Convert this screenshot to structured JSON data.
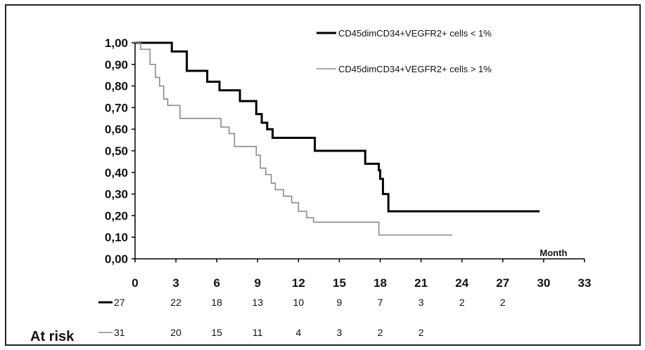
{
  "chart_data": {
    "type": "line",
    "step": true,
    "xlim": [
      0,
      33
    ],
    "ylim": [
      0,
      1
    ],
    "x_ticks": [
      "0",
      "3",
      "6",
      "9",
      "12",
      "15",
      "18",
      "21",
      "24",
      "27",
      "30",
      "33"
    ],
    "y_ticks": [
      "0,00",
      "0,10",
      "0,20",
      "0,30",
      "0,40",
      "0,50",
      "0,60",
      "0,70",
      "0,80",
      "0,90",
      "1,00"
    ],
    "x_unit": "Month",
    "legend_position": "top-right",
    "series": [
      {
        "name": "CD45dimCD34+VEGFR2+ cells < 1%",
        "color": "#000000",
        "x": [
          0,
          2.7,
          3.8,
          5.3,
          6.2,
          7.7,
          8.9,
          9.3,
          9.7,
          10.1,
          13.2,
          16.9,
          17.9,
          18.0,
          18.2,
          18.6,
          29.7
        ],
        "y": [
          1.0,
          0.96,
          0.87,
          0.82,
          0.78,
          0.73,
          0.67,
          0.63,
          0.6,
          0.56,
          0.5,
          0.44,
          0.41,
          0.37,
          0.3,
          0.22,
          0.22
        ]
      },
      {
        "name": "CD45dimCD34+VEGFR2+ cells > 1%",
        "color": "#8a8a8a",
        "x": [
          0,
          0.4,
          1.1,
          1.5,
          1.8,
          2.1,
          2.4,
          3.3,
          6.3,
          6.9,
          7.3,
          8.9,
          9.2,
          9.6,
          10.0,
          10.3,
          10.9,
          11.5,
          12.0,
          12.6,
          13.1,
          17.9,
          23.3
        ],
        "y": [
          1.0,
          0.97,
          0.9,
          0.84,
          0.8,
          0.74,
          0.71,
          0.65,
          0.61,
          0.58,
          0.52,
          0.48,
          0.42,
          0.39,
          0.35,
          0.32,
          0.29,
          0.26,
          0.22,
          0.19,
          0.17,
          0.11,
          0.11
        ]
      }
    ]
  },
  "at_risk": {
    "label": "At risk",
    "rows": [
      {
        "legend": "27",
        "color": "#000000",
        "values": [
          {
            "x": 3,
            "v": "22"
          },
          {
            "x": 6,
            "v": "18"
          },
          {
            "x": 9,
            "v": "13"
          },
          {
            "x": 12,
            "v": "10"
          },
          {
            "x": 15,
            "v": "9"
          },
          {
            "x": 18,
            "v": "7"
          },
          {
            "x": 21,
            "v": "3"
          },
          {
            "x": 24,
            "v": "2"
          },
          {
            "x": 27,
            "v": "2"
          }
        ]
      },
      {
        "legend": "31",
        "color": "#8a8a8a",
        "values": [
          {
            "x": 3,
            "v": "20"
          },
          {
            "x": 6,
            "v": "15"
          },
          {
            "x": 9,
            "v": "11"
          },
          {
            "x": 12,
            "v": "4"
          },
          {
            "x": 15,
            "v": "3"
          },
          {
            "x": 18,
            "v": "2"
          },
          {
            "x": 21,
            "v": "2"
          }
        ]
      }
    ]
  }
}
